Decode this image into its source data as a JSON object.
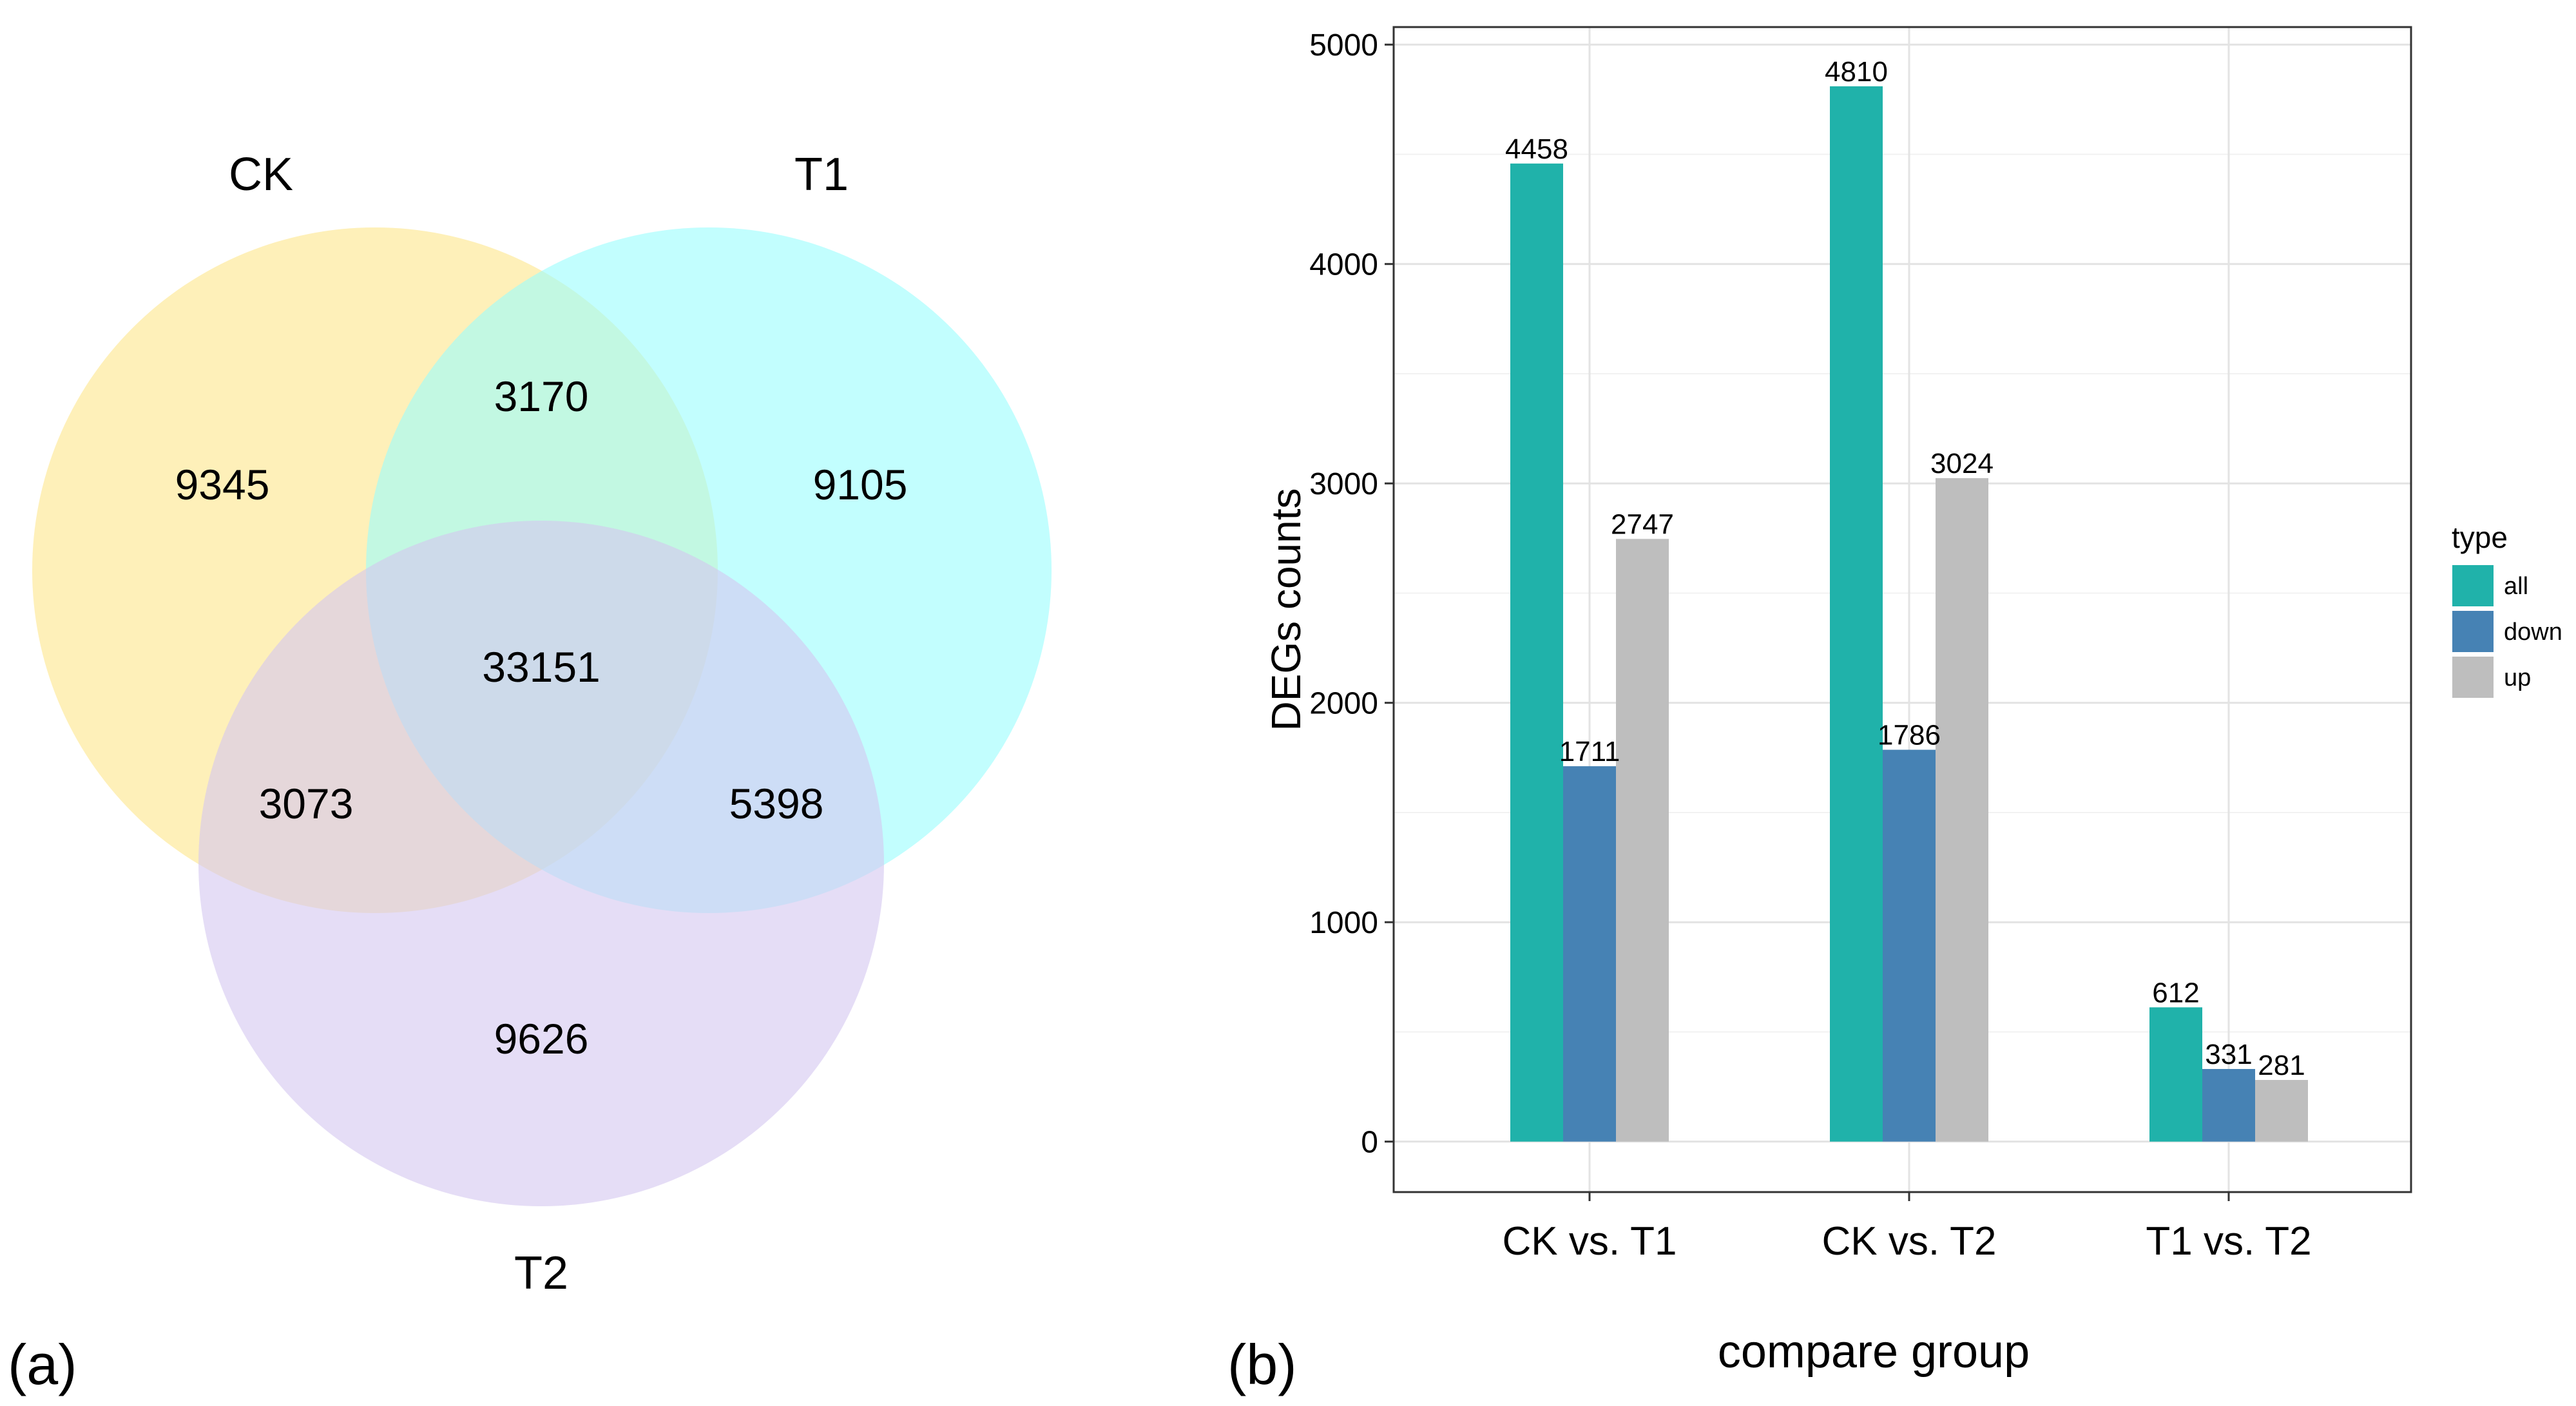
{
  "panel_a": {
    "label": "(a)",
    "sets": [
      {
        "name": "CK",
        "color": "#fde68a"
      },
      {
        "name": "T1",
        "color": "#99fdfd"
      },
      {
        "name": "T2",
        "color": "#d4c6f0"
      }
    ],
    "region_counts": {
      "ck_only": "9345",
      "t1_only": "9105",
      "t2_only": "9626",
      "ck_t1": "3170",
      "ck_t2": "3073",
      "t1_t2": "5398",
      "all": "33151"
    }
  },
  "panel_b": {
    "label": "(b)"
  },
  "chart_data": {
    "type": "bar",
    "categories": [
      "CK vs. T1",
      "CK vs. T2",
      "T1 vs. T2"
    ],
    "series": [
      {
        "name": "all",
        "color": "#20b2aa",
        "values": [
          4458,
          4810,
          612
        ]
      },
      {
        "name": "down",
        "color": "#4682b4",
        "values": [
          1711,
          1786,
          331
        ]
      },
      {
        "name": "up",
        "color": "#bebebe",
        "values": [
          2747,
          3024,
          281
        ]
      }
    ],
    "xlabel": "compare group",
    "ylabel": "DEGs counts",
    "ylim": [
      -230,
      5080
    ],
    "yticks": [
      0,
      1000,
      2000,
      3000,
      4000,
      5000
    ],
    "legend_title": "type",
    "legend_position": "right",
    "grid": true
  }
}
